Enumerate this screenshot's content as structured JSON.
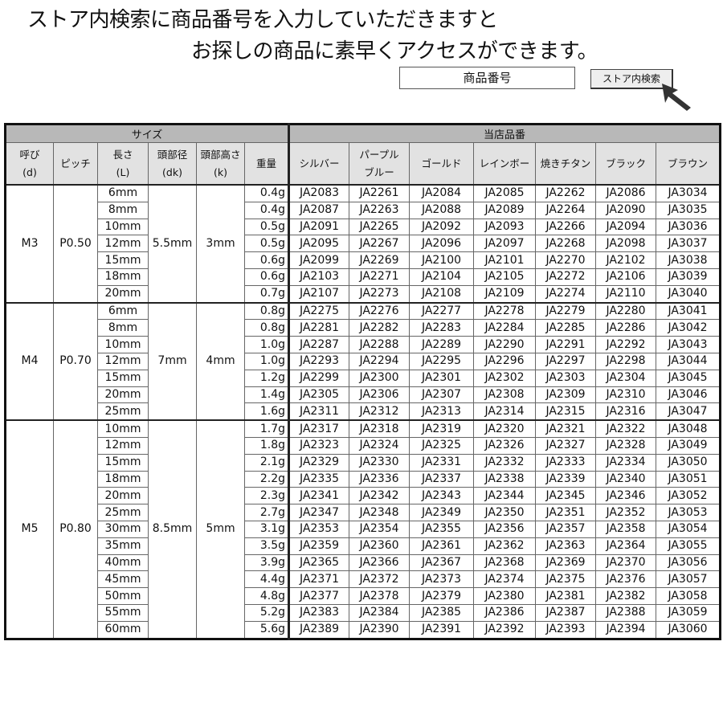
{
  "intro": {
    "line1": "ストア内検索に商品番号を入力していただきますと",
    "line2": "お探しの商品に素早くアクセスができます。"
  },
  "search": {
    "input_value": "商品番号",
    "button_label": "ストア内検索",
    "cursor_icon": "arrow-cursor-icon"
  },
  "table": {
    "group_headers": {
      "size": "サイズ",
      "codes": "当店品番"
    },
    "columns": {
      "nominal": [
        "呼び",
        "(d)"
      ],
      "pitch": "ピッチ",
      "length": [
        "長さ",
        "(L)"
      ],
      "head_dia": [
        "頭部径",
        "(dk)"
      ],
      "head_height": [
        "頭部高さ",
        "(k)"
      ],
      "weight": "重量",
      "colors": [
        [
          "シルバー"
        ],
        [
          "パープル",
          "ブルー"
        ],
        [
          "ゴールド"
        ],
        [
          "レインボー"
        ],
        [
          "焼きチタン"
        ],
        [
          "ブラック"
        ],
        [
          "ブラウン"
        ]
      ]
    },
    "groups": [
      {
        "nominal": "M3",
        "pitch": "P0.50",
        "head_dia": "5.5mm",
        "head_height": "3mm",
        "rows": [
          {
            "length": "6mm",
            "weight": "0.4g",
            "codes": [
              "JA2083",
              "JA2261",
              "JA2084",
              "JA2085",
              "JA2262",
              "JA2086",
              "JA3034"
            ]
          },
          {
            "length": "8mm",
            "weight": "0.4g",
            "codes": [
              "JA2087",
              "JA2263",
              "JA2088",
              "JA2089",
              "JA2264",
              "JA2090",
              "JA3035"
            ]
          },
          {
            "length": "10mm",
            "weight": "0.5g",
            "codes": [
              "JA2091",
              "JA2265",
              "JA2092",
              "JA2093",
              "JA2266",
              "JA2094",
              "JA3036"
            ]
          },
          {
            "length": "12mm",
            "weight": "0.5g",
            "codes": [
              "JA2095",
              "JA2267",
              "JA2096",
              "JA2097",
              "JA2268",
              "JA2098",
              "JA3037"
            ]
          },
          {
            "length": "15mm",
            "weight": "0.6g",
            "codes": [
              "JA2099",
              "JA2269",
              "JA2100",
              "JA2101",
              "JA2270",
              "JA2102",
              "JA3038"
            ]
          },
          {
            "length": "18mm",
            "weight": "0.6g",
            "codes": [
              "JA2103",
              "JA2271",
              "JA2104",
              "JA2105",
              "JA2272",
              "JA2106",
              "JA3039"
            ]
          },
          {
            "length": "20mm",
            "weight": "0.7g",
            "codes": [
              "JA2107",
              "JA2273",
              "JA2108",
              "JA2109",
              "JA2274",
              "JA2110",
              "JA3040"
            ]
          }
        ]
      },
      {
        "nominal": "M4",
        "pitch": "P0.70",
        "head_dia": "7mm",
        "head_height": "4mm",
        "rows": [
          {
            "length": "6mm",
            "weight": "0.8g",
            "codes": [
              "JA2275",
              "JA2276",
              "JA2277",
              "JA2278",
              "JA2279",
              "JA2280",
              "JA3041"
            ]
          },
          {
            "length": "8mm",
            "weight": "0.8g",
            "codes": [
              "JA2281",
              "JA2282",
              "JA2283",
              "JA2284",
              "JA2285",
              "JA2286",
              "JA3042"
            ]
          },
          {
            "length": "10mm",
            "weight": "1.0g",
            "codes": [
              "JA2287",
              "JA2288",
              "JA2289",
              "JA2290",
              "JA2291",
              "JA2292",
              "JA3043"
            ]
          },
          {
            "length": "12mm",
            "weight": "1.0g",
            "codes": [
              "JA2293",
              "JA2294",
              "JA2295",
              "JA2296",
              "JA2297",
              "JA2298",
              "JA3044"
            ]
          },
          {
            "length": "15mm",
            "weight": "1.2g",
            "codes": [
              "JA2299",
              "JA2300",
              "JA2301",
              "JA2302",
              "JA2303",
              "JA2304",
              "JA3045"
            ]
          },
          {
            "length": "20mm",
            "weight": "1.4g",
            "codes": [
              "JA2305",
              "JA2306",
              "JA2307",
              "JA2308",
              "JA2309",
              "JA2310",
              "JA3046"
            ]
          },
          {
            "length": "25mm",
            "weight": "1.6g",
            "codes": [
              "JA2311",
              "JA2312",
              "JA2313",
              "JA2314",
              "JA2315",
              "JA2316",
              "JA3047"
            ]
          }
        ]
      },
      {
        "nominal": "M5",
        "pitch": "P0.80",
        "head_dia": "8.5mm",
        "head_height": "5mm",
        "rows": [
          {
            "length": "10mm",
            "weight": "1.7g",
            "codes": [
              "JA2317",
              "JA2318",
              "JA2319",
              "JA2320",
              "JA2321",
              "JA2322",
              "JA3048"
            ]
          },
          {
            "length": "12mm",
            "weight": "1.8g",
            "codes": [
              "JA2323",
              "JA2324",
              "JA2325",
              "JA2326",
              "JA2327",
              "JA2328",
              "JA3049"
            ]
          },
          {
            "length": "15mm",
            "weight": "2.1g",
            "codes": [
              "JA2329",
              "JA2330",
              "JA2331",
              "JA2332",
              "JA2333",
              "JA2334",
              "JA3050"
            ]
          },
          {
            "length": "18mm",
            "weight": "2.2g",
            "codes": [
              "JA2335",
              "JA2336",
              "JA2337",
              "JA2338",
              "JA2339",
              "JA2340",
              "JA3051"
            ]
          },
          {
            "length": "20mm",
            "weight": "2.3g",
            "codes": [
              "JA2341",
              "JA2342",
              "JA2343",
              "JA2344",
              "JA2345",
              "JA2346",
              "JA3052"
            ]
          },
          {
            "length": "25mm",
            "weight": "2.7g",
            "codes": [
              "JA2347",
              "JA2348",
              "JA2349",
              "JA2350",
              "JA2351",
              "JA2352",
              "JA3053"
            ]
          },
          {
            "length": "30mm",
            "weight": "3.1g",
            "codes": [
              "JA2353",
              "JA2354",
              "JA2355",
              "JA2356",
              "JA2357",
              "JA2358",
              "JA3054"
            ]
          },
          {
            "length": "35mm",
            "weight": "3.5g",
            "codes": [
              "JA2359",
              "JA2360",
              "JA2361",
              "JA2362",
              "JA2363",
              "JA2364",
              "JA3055"
            ]
          },
          {
            "length": "40mm",
            "weight": "3.9g",
            "codes": [
              "JA2365",
              "JA2366",
              "JA2367",
              "JA2368",
              "JA2369",
              "JA2370",
              "JA3056"
            ]
          },
          {
            "length": "45mm",
            "weight": "4.4g",
            "codes": [
              "JA2371",
              "JA2372",
              "JA2373",
              "JA2374",
              "JA2375",
              "JA2376",
              "JA3057"
            ]
          },
          {
            "length": "50mm",
            "weight": "4.8g",
            "codes": [
              "JA2377",
              "JA2378",
              "JA2379",
              "JA2380",
              "JA2381",
              "JA2382",
              "JA3058"
            ]
          },
          {
            "length": "55mm",
            "weight": "5.2g",
            "codes": [
              "JA2383",
              "JA2384",
              "JA2385",
              "JA2386",
              "JA2387",
              "JA2388",
              "JA3059"
            ]
          },
          {
            "length": "60mm",
            "weight": "5.6g",
            "codes": [
              "JA2389",
              "JA2390",
              "JA2391",
              "JA2392",
              "JA2393",
              "JA2394",
              "JA3060"
            ]
          }
        ]
      }
    ]
  },
  "colors": {
    "header_top_bg": "#b8b8b8",
    "header_sub_bg": "#e2e2e2",
    "border": "#222222"
  }
}
